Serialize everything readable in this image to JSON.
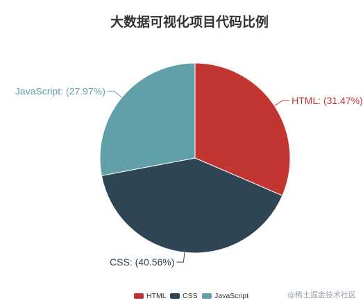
{
  "chart_data": {
    "type": "pie",
    "title": "大数据可视化项目代码比例",
    "slices": [
      {
        "label": "HTML",
        "value": 31.47,
        "display": "HTML: (31.47%)",
        "color": "#c23531"
      },
      {
        "label": "CSS",
        "value": 40.56,
        "display": "CSS: (40.56%)",
        "color": "#2f4554"
      },
      {
        "label": "JavaScript",
        "value": 27.97,
        "display": "JavaScript: (27.97%)",
        "color": "#61a0a8"
      }
    ],
    "legend": {
      "position": "bottom",
      "items": [
        "HTML",
        "CSS",
        "JavaScript"
      ]
    }
  },
  "watermark": "@稀土掘金技术社区"
}
